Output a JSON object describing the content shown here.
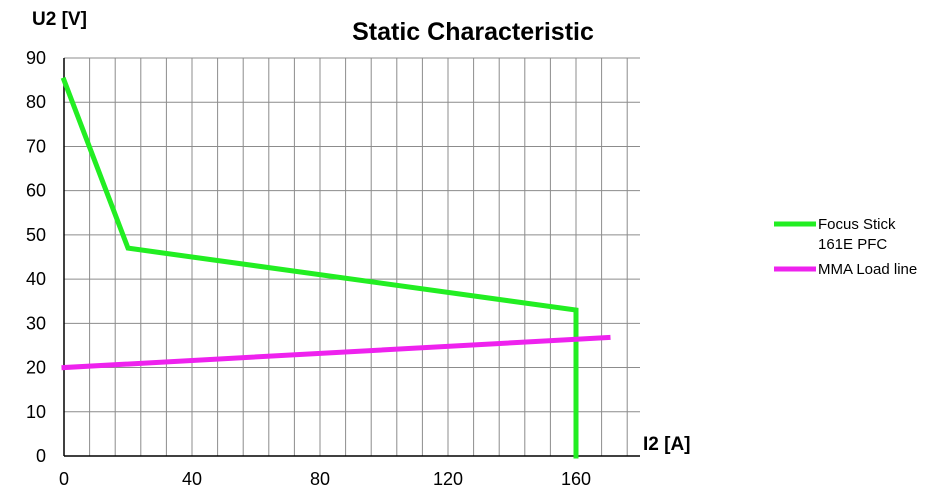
{
  "chart_data": {
    "type": "line",
    "title": "Static Characteristic",
    "xlabel": "I2 [A]",
    "ylabel": "U2 [V]",
    "xlim": [
      0,
      180
    ],
    "ylim": [
      0,
      90
    ],
    "x_ticks": [
      0,
      40,
      80,
      120,
      160
    ],
    "y_ticks": [
      0,
      10,
      20,
      30,
      40,
      50,
      60,
      70,
      80,
      90
    ],
    "grid": true,
    "legend_position": "right",
    "series": [
      {
        "name_lines": [
          "Focus Stick",
          "161E PFC"
        ],
        "color": "#22ee22",
        "points": [
          [
            0,
            85
          ],
          [
            20,
            47
          ],
          [
            160,
            33
          ],
          [
            160,
            0
          ]
        ]
      },
      {
        "name_lines": [
          "MMA Load line"
        ],
        "color": "#ee22ee",
        "points": [
          [
            0,
            20
          ],
          [
            170,
            26.8
          ]
        ]
      }
    ]
  }
}
